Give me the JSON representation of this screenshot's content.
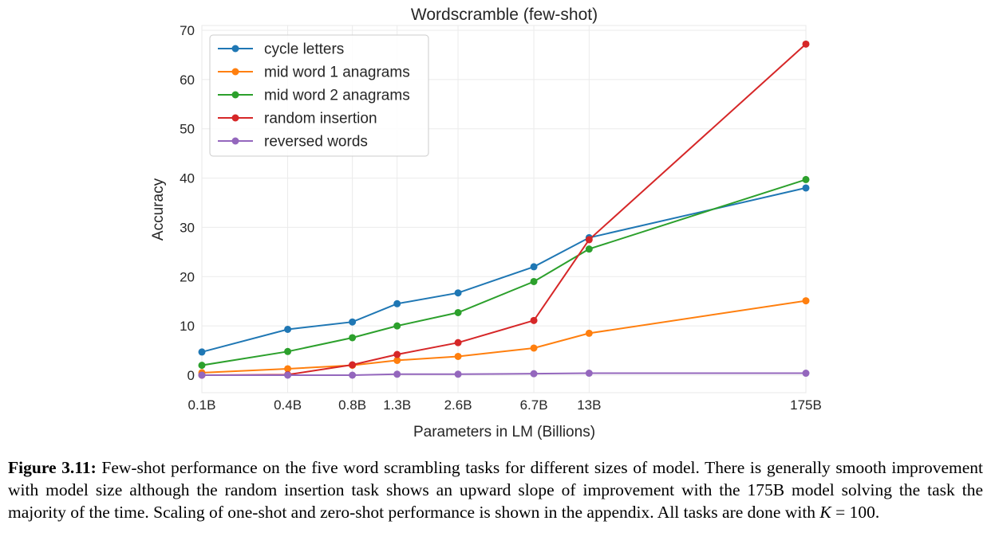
{
  "chart_data": {
    "type": "line",
    "title": "Wordscramble (few-shot)",
    "xlabel": "Parameters in LM (Billions)",
    "ylabel": "Accuracy",
    "categories": [
      "0.1B",
      "0.4B",
      "0.8B",
      "1.3B",
      "2.6B",
      "6.7B",
      "13B",
      "175B"
    ],
    "x": [
      0.125,
      0.35,
      0.76,
      1.3,
      2.7,
      6.7,
      13,
      175
    ],
    "ylim": [
      0,
      70
    ],
    "yticks": [
      "0",
      "10",
      "20",
      "30",
      "40",
      "50",
      "60",
      "70"
    ],
    "grid": true,
    "legend_position": "top-left",
    "series": [
      {
        "name": "cycle letters",
        "color": "#1f77b4",
        "values": [
          4.7,
          9.3,
          10.8,
          14.5,
          16.7,
          22.0,
          27.9,
          38.0
        ]
      },
      {
        "name": "mid word 1 anagrams",
        "color": "#ff7f0e",
        "values": [
          0.5,
          1.3,
          2.0,
          3.0,
          3.8,
          5.5,
          8.5,
          15.1
        ]
      },
      {
        "name": "mid word 2 anagrams",
        "color": "#2ca02c",
        "values": [
          2.0,
          4.8,
          7.6,
          10.0,
          12.7,
          19.0,
          25.6,
          39.7
        ]
      },
      {
        "name": "random insertion",
        "color": "#d62728",
        "values": [
          0.0,
          0.1,
          2.1,
          4.2,
          6.6,
          11.1,
          27.5,
          67.2
        ]
      },
      {
        "name": "reversed words",
        "color": "#9467bd",
        "values": [
          0.0,
          0.0,
          0.0,
          0.2,
          0.2,
          0.3,
          0.4,
          0.4
        ]
      }
    ]
  },
  "caption": {
    "label": "Figure 3.11:",
    "text": "Few-shot performance on the five word scrambling tasks for different sizes of model. There is generally smooth improvement with model size although the random insertion task shows an upward slope of improvement with the 175B model solving the task the majority of the time. Scaling of one-shot and zero-shot performance is shown in the appendix. All tasks are done with",
    "math_var": "K",
    "math_rest": " = 100."
  }
}
